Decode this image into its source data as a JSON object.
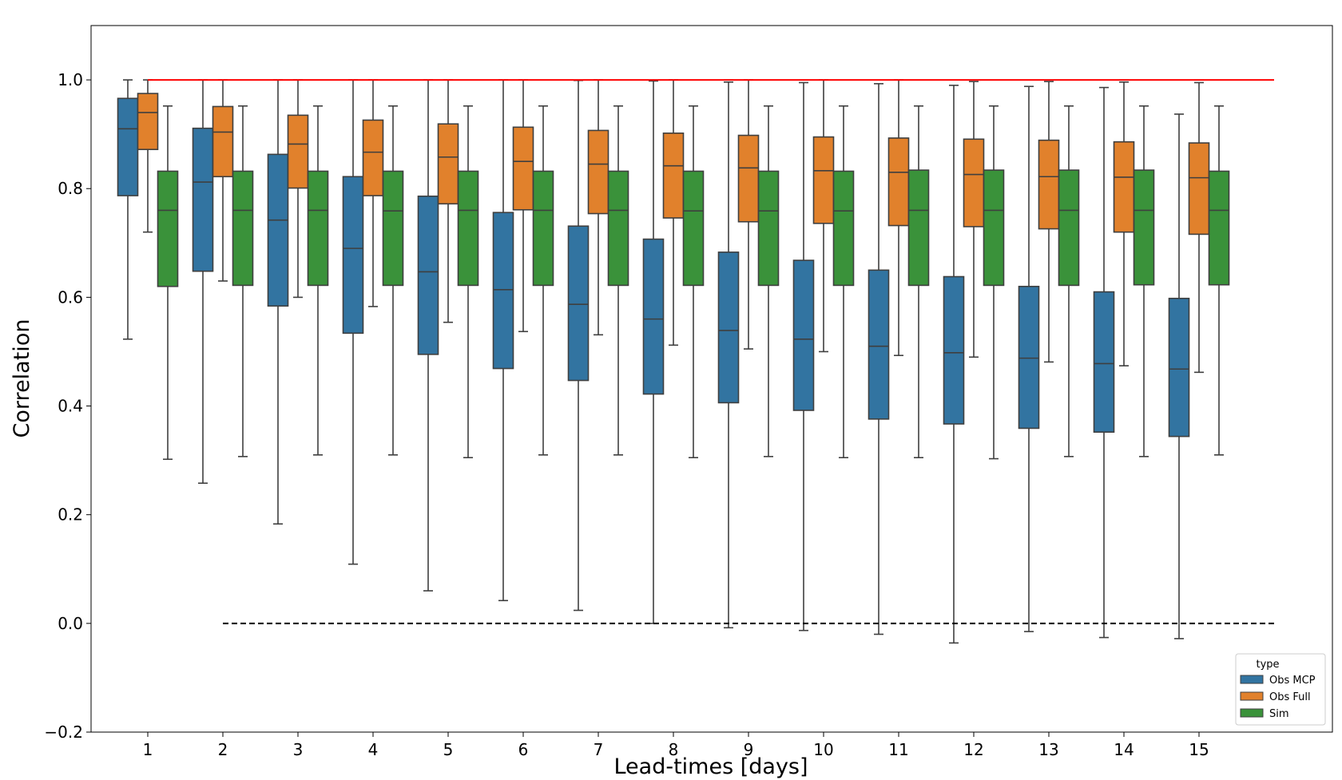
{
  "chart_data": {
    "type": "box",
    "xlabel": "Lead-times [days]",
    "ylabel": "Correlation",
    "ylim": [
      -0.2,
      1.1
    ],
    "yticks": [
      -0.2,
      0.0,
      0.2,
      0.4,
      0.6,
      0.8,
      1.0
    ],
    "ytick_labels": [
      "−0.2",
      "0.0",
      "0.2",
      "0.4",
      "0.6",
      "0.8",
      "1.0"
    ],
    "categories": [
      "1",
      "2",
      "3",
      "4",
      "5",
      "6",
      "7",
      "8",
      "9",
      "10",
      "11",
      "12",
      "13",
      "14",
      "15"
    ],
    "reference_lines": [
      {
        "y": 1.0,
        "x_from": "1",
        "x_to": "15",
        "color": "#ff0000",
        "style": "solid"
      },
      {
        "y": 0.0,
        "x_from": "2",
        "x_to": "15",
        "color": "#000000",
        "style": "dashed"
      }
    ],
    "legend": {
      "title": "type",
      "position": "lower-right"
    },
    "series": [
      {
        "name": "Obs MCP",
        "color": "#3274a1",
        "boxes": [
          {
            "whislo": 0.523,
            "q1": 0.787,
            "med": 0.91,
            "q3": 0.966,
            "whishi": 1.0
          },
          {
            "whislo": 0.258,
            "q1": 0.648,
            "med": 0.812,
            "q3": 0.911,
            "whishi": 1.0
          },
          {
            "whislo": 0.183,
            "q1": 0.584,
            "med": 0.742,
            "q3": 0.863,
            "whishi": 1.0
          },
          {
            "whislo": 0.109,
            "q1": 0.534,
            "med": 0.69,
            "q3": 0.822,
            "whishi": 1.0
          },
          {
            "whislo": 0.06,
            "q1": 0.495,
            "med": 0.647,
            "q3": 0.786,
            "whishi": 1.0
          },
          {
            "whislo": 0.042,
            "q1": 0.469,
            "med": 0.614,
            "q3": 0.756,
            "whishi": 1.0
          },
          {
            "whislo": 0.024,
            "q1": 0.447,
            "med": 0.587,
            "q3": 0.731,
            "whishi": 0.999
          },
          {
            "whislo": 0.0,
            "q1": 0.422,
            "med": 0.56,
            "q3": 0.707,
            "whishi": 0.998
          },
          {
            "whislo": -0.008,
            "q1": 0.406,
            "med": 0.539,
            "q3": 0.683,
            "whishi": 0.996
          },
          {
            "whislo": -0.013,
            "q1": 0.392,
            "med": 0.523,
            "q3": 0.668,
            "whishi": 0.995
          },
          {
            "whislo": -0.02,
            "q1": 0.376,
            "med": 0.51,
            "q3": 0.65,
            "whishi": 0.993
          },
          {
            "whislo": -0.036,
            "q1": 0.367,
            "med": 0.498,
            "q3": 0.638,
            "whishi": 0.99
          },
          {
            "whislo": -0.015,
            "q1": 0.359,
            "med": 0.488,
            "q3": 0.62,
            "whishi": 0.988
          },
          {
            "whislo": -0.026,
            "q1": 0.352,
            "med": 0.478,
            "q3": 0.61,
            "whishi": 0.986
          },
          {
            "whislo": -0.028,
            "q1": 0.344,
            "med": 0.468,
            "q3": 0.598,
            "whishi": 0.937
          }
        ]
      },
      {
        "name": "Obs Full",
        "color": "#e1812c",
        "boxes": [
          {
            "whislo": 0.72,
            "q1": 0.872,
            "med": 0.94,
            "q3": 0.975,
            "whishi": 1.0
          },
          {
            "whislo": 0.63,
            "q1": 0.822,
            "med": 0.904,
            "q3": 0.951,
            "whishi": 1.0
          },
          {
            "whislo": 0.6,
            "q1": 0.801,
            "med": 0.882,
            "q3": 0.935,
            "whishi": 1.0
          },
          {
            "whislo": 0.583,
            "q1": 0.787,
            "med": 0.867,
            "q3": 0.926,
            "whishi": 1.0
          },
          {
            "whislo": 0.554,
            "q1": 0.772,
            "med": 0.858,
            "q3": 0.919,
            "whishi": 1.0
          },
          {
            "whislo": 0.537,
            "q1": 0.761,
            "med": 0.85,
            "q3": 0.913,
            "whishi": 1.0
          },
          {
            "whislo": 0.531,
            "q1": 0.754,
            "med": 0.845,
            "q3": 0.907,
            "whishi": 1.0
          },
          {
            "whislo": 0.512,
            "q1": 0.746,
            "med": 0.842,
            "q3": 0.902,
            "whishi": 1.0
          },
          {
            "whislo": 0.505,
            "q1": 0.739,
            "med": 0.838,
            "q3": 0.898,
            "whishi": 1.0
          },
          {
            "whislo": 0.5,
            "q1": 0.736,
            "med": 0.833,
            "q3": 0.895,
            "whishi": 1.0
          },
          {
            "whislo": 0.493,
            "q1": 0.732,
            "med": 0.83,
            "q3": 0.893,
            "whishi": 1.0
          },
          {
            "whislo": 0.49,
            "q1": 0.73,
            "med": 0.826,
            "q3": 0.891,
            "whishi": 0.997
          },
          {
            "whislo": 0.481,
            "q1": 0.726,
            "med": 0.822,
            "q3": 0.889,
            "whishi": 0.997
          },
          {
            "whislo": 0.474,
            "q1": 0.72,
            "med": 0.821,
            "q3": 0.886,
            "whishi": 0.996
          },
          {
            "whislo": 0.462,
            "q1": 0.716,
            "med": 0.82,
            "q3": 0.884,
            "whishi": 0.995
          }
        ]
      },
      {
        "name": "Sim",
        "color": "#3a923a",
        "boxes": [
          {
            "whislo": 0.302,
            "q1": 0.62,
            "med": 0.76,
            "q3": 0.832,
            "whishi": 0.952
          },
          {
            "whislo": 0.307,
            "q1": 0.622,
            "med": 0.76,
            "q3": 0.832,
            "whishi": 0.952
          },
          {
            "whislo": 0.31,
            "q1": 0.622,
            "med": 0.76,
            "q3": 0.832,
            "whishi": 0.952
          },
          {
            "whislo": 0.31,
            "q1": 0.622,
            "med": 0.759,
            "q3": 0.832,
            "whishi": 0.952
          },
          {
            "whislo": 0.305,
            "q1": 0.622,
            "med": 0.76,
            "q3": 0.832,
            "whishi": 0.952
          },
          {
            "whislo": 0.31,
            "q1": 0.622,
            "med": 0.76,
            "q3": 0.832,
            "whishi": 0.952
          },
          {
            "whislo": 0.31,
            "q1": 0.622,
            "med": 0.76,
            "q3": 0.832,
            "whishi": 0.952
          },
          {
            "whislo": 0.305,
            "q1": 0.622,
            "med": 0.759,
            "q3": 0.832,
            "whishi": 0.952
          },
          {
            "whislo": 0.307,
            "q1": 0.622,
            "med": 0.759,
            "q3": 0.832,
            "whishi": 0.952
          },
          {
            "whislo": 0.305,
            "q1": 0.622,
            "med": 0.759,
            "q3": 0.832,
            "whishi": 0.952
          },
          {
            "whislo": 0.305,
            "q1": 0.622,
            "med": 0.76,
            "q3": 0.834,
            "whishi": 0.952
          },
          {
            "whislo": 0.303,
            "q1": 0.622,
            "med": 0.76,
            "q3": 0.834,
            "whishi": 0.952
          },
          {
            "whislo": 0.307,
            "q1": 0.622,
            "med": 0.76,
            "q3": 0.834,
            "whishi": 0.952
          },
          {
            "whislo": 0.307,
            "q1": 0.623,
            "med": 0.76,
            "q3": 0.834,
            "whishi": 0.952
          },
          {
            "whislo": 0.31,
            "q1": 0.623,
            "med": 0.76,
            "q3": 0.832,
            "whishi": 0.952
          }
        ]
      }
    ]
  }
}
